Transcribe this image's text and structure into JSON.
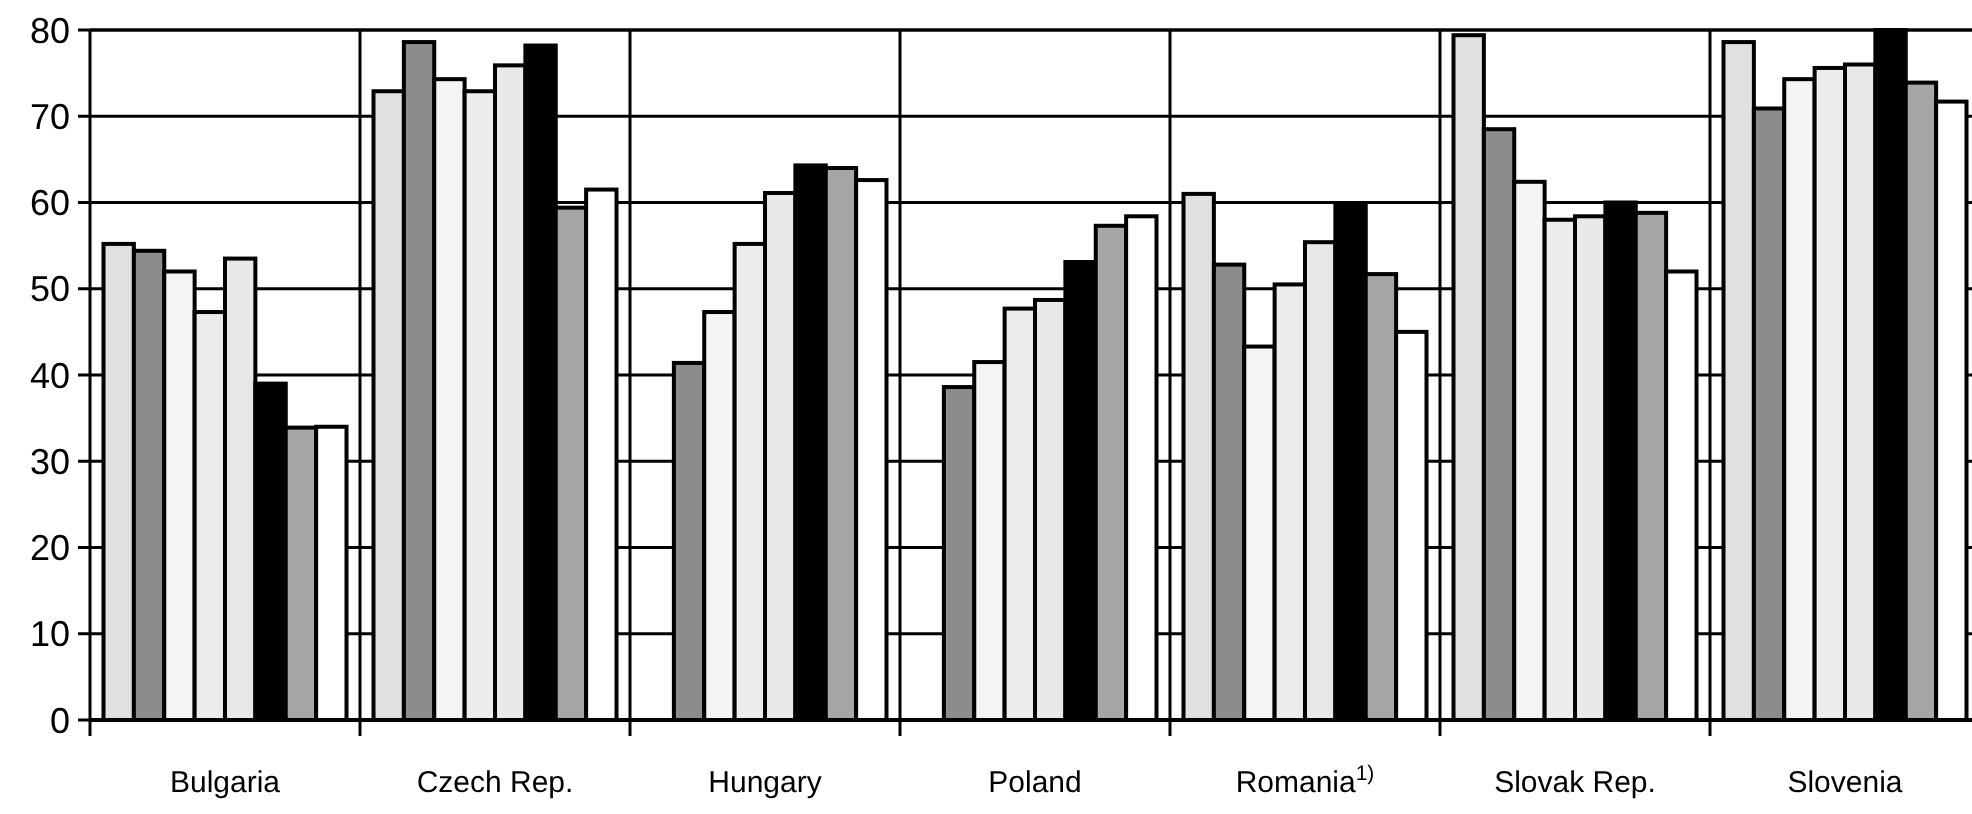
{
  "chart_data": {
    "type": "bar",
    "categories": [
      "Bulgaria",
      "Czech Rep.",
      "Hungary",
      "Poland",
      "Romania$^{1)}$",
      "Slovak Rep.",
      "Slovenia"
    ],
    "series": [
      {
        "color": "#e0e0e0",
        "values": [
          55.2,
          72.9,
          null,
          null,
          61.0,
          79.4,
          78.6
        ]
      },
      {
        "color": "#8c8c8c",
        "values": [
          54.4,
          78.6,
          41.4,
          38.6,
          52.8,
          68.5,
          70.9
        ]
      },
      {
        "color": "#f4f4f4",
        "values": [
          52.0,
          74.3,
          47.3,
          41.5,
          43.3,
          62.4,
          74.3
        ]
      },
      {
        "color": "#ececec",
        "values": [
          47.3,
          72.9,
          55.2,
          47.7,
          50.5,
          58.0,
          75.6
        ]
      },
      {
        "color": "#e8e8e8",
        "values": [
          53.5,
          75.9,
          61.1,
          48.7,
          55.4,
          58.4,
          76.0
        ]
      },
      {
        "color": "#000000",
        "values": [
          39.0,
          78.2,
          64.3,
          53.1,
          59.6,
          60.0,
          80
        ]
      },
      {
        "color": "#a6a6a6",
        "values": [
          33.9,
          59.4,
          64.0,
          57.3,
          51.7,
          58.8,
          73.9
        ]
      },
      {
        "color": "#ffffff",
        "values": [
          34.0,
          61.5,
          62.6,
          58.4,
          45.0,
          52.0,
          71.7
        ]
      }
    ],
    "ylim": [
      0,
      80
    ],
    "yticks": [
      0,
      10,
      20,
      30,
      40,
      50,
      60,
      70,
      80
    ],
    "grid": true
  }
}
